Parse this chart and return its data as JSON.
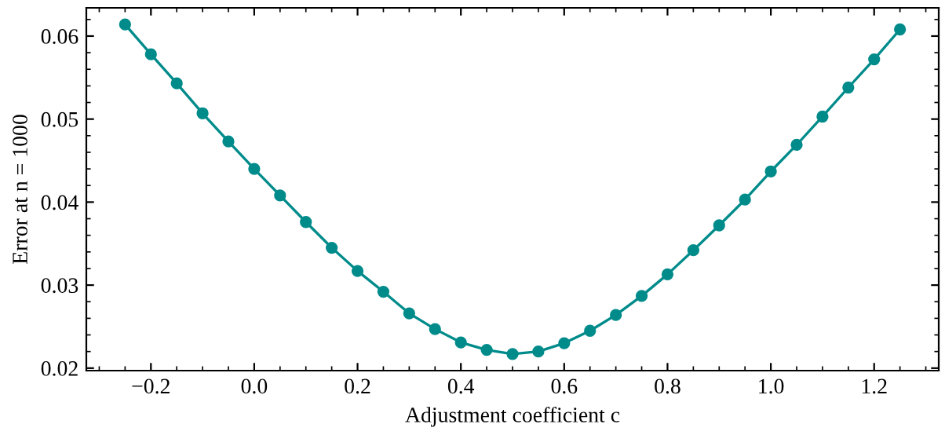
{
  "chart_data": {
    "type": "line",
    "xlabel": "Adjustment coefficient c",
    "ylabel": "Error at n = 1000",
    "x": [
      -0.25,
      -0.2,
      -0.15,
      -0.1,
      -0.05,
      0.0,
      0.05,
      0.1,
      0.15,
      0.2,
      0.25,
      0.3,
      0.35,
      0.4,
      0.45,
      0.5,
      0.55,
      0.6,
      0.65,
      0.7,
      0.75,
      0.8,
      0.85,
      0.9,
      0.95,
      1.0,
      1.05,
      1.1,
      1.15,
      1.2,
      1.25
    ],
    "series": [
      {
        "color": "#008b8b",
        "values": [
          0.0614,
          0.0578,
          0.0543,
          0.0507,
          0.0473,
          0.044,
          0.0408,
          0.0376,
          0.0345,
          0.0317,
          0.0292,
          0.0266,
          0.0247,
          0.0231,
          0.0222,
          0.0217,
          0.022,
          0.023,
          0.0245,
          0.0264,
          0.0287,
          0.0313,
          0.0342,
          0.0372,
          0.0403,
          0.0437,
          0.0469,
          0.0503,
          0.0538,
          0.0572,
          0.0608
        ]
      }
    ],
    "xlim": [
      -0.325,
      1.325
    ],
    "ylim": [
      0.0197,
      0.0634
    ],
    "xticks": [
      {
        "value": -0.2,
        "label": "−0.2"
      },
      {
        "value": 0.0,
        "label": "0.0"
      },
      {
        "value": 0.2,
        "label": "0.2"
      },
      {
        "value": 0.4,
        "label": "0.4"
      },
      {
        "value": 0.6,
        "label": "0.6"
      },
      {
        "value": 0.8,
        "label": "0.8"
      },
      {
        "value": 1.0,
        "label": "1.0"
      },
      {
        "value": 1.2,
        "label": "1.2"
      }
    ],
    "yticks": [
      {
        "value": 0.02,
        "label": "0.02"
      },
      {
        "value": 0.03,
        "label": "0.03"
      },
      {
        "value": 0.04,
        "label": "0.04"
      },
      {
        "value": 0.05,
        "label": "0.05"
      },
      {
        "value": 0.06,
        "label": "0.06"
      }
    ],
    "marker": "circle",
    "line_style": "solid",
    "grid": false,
    "legend": false
  }
}
